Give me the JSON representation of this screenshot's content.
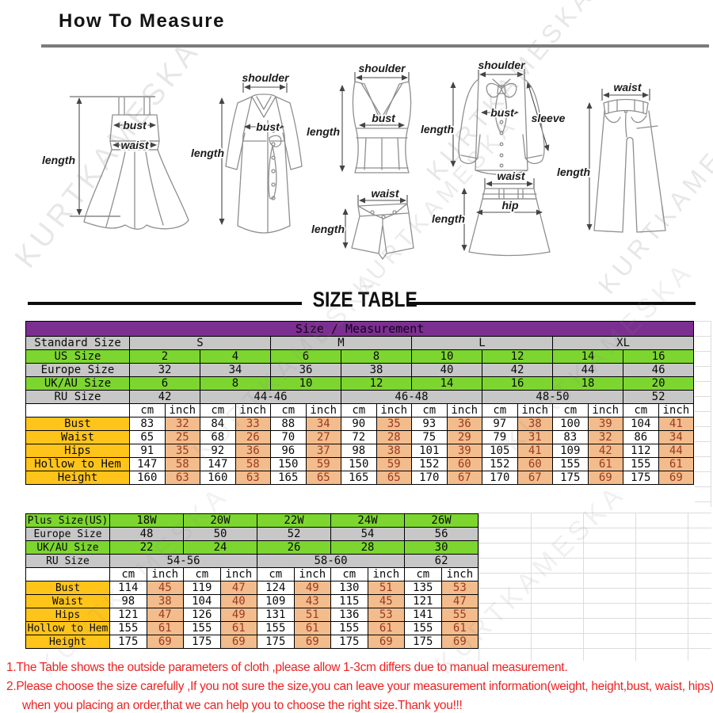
{
  "page": {
    "title": "How To Measure",
    "size_table_heading": "SIZE TABLE",
    "watermark": "KURTKAMESKA"
  },
  "diagrams": {
    "labels": {
      "bust": "bust",
      "waist": "waist",
      "length": "length",
      "shoulder": "shoulder",
      "sleeve": "sleeve",
      "hip": "hip"
    }
  },
  "standard_table": {
    "title": "Size / Measurement",
    "label_col_width": 131,
    "sub_cols": 16,
    "sub_col_width": 44.5,
    "rows": [
      {
        "name": "size-measurement-header",
        "cells": [
          [
            "Size / Measurement",
            17,
            "purple"
          ]
        ]
      },
      {
        "name": "standard-size",
        "label": "Standard Size",
        "lc": "gray",
        "cells": [
          [
            "S",
            4,
            "gray"
          ],
          [
            "M",
            4,
            "gray"
          ],
          [
            "L",
            4,
            "gray"
          ],
          [
            "XL",
            4,
            "gray"
          ]
        ]
      },
      {
        "name": "us-size",
        "label": "US Size",
        "lc": "green",
        "cells": [
          [
            "2",
            2,
            "green"
          ],
          [
            "4",
            2,
            "green"
          ],
          [
            "6",
            2,
            "green"
          ],
          [
            "8",
            2,
            "green"
          ],
          [
            "10",
            2,
            "green"
          ],
          [
            "12",
            2,
            "green"
          ],
          [
            "14",
            2,
            "green"
          ],
          [
            "16",
            2,
            "green"
          ]
        ]
      },
      {
        "name": "europe-size",
        "label": "Europe Size",
        "lc": "gray",
        "cells": [
          [
            "32",
            2,
            "gray"
          ],
          [
            "34",
            2,
            "gray"
          ],
          [
            "36",
            2,
            "gray"
          ],
          [
            "38",
            2,
            "gray"
          ],
          [
            "40",
            2,
            "gray"
          ],
          [
            "42",
            2,
            "gray"
          ],
          [
            "44",
            2,
            "gray"
          ],
          [
            "46",
            2,
            "gray"
          ]
        ]
      },
      {
        "name": "uk-au-size",
        "label": "UK/AU Size",
        "lc": "green",
        "cells": [
          [
            "6",
            2,
            "green"
          ],
          [
            "8",
            2,
            "green"
          ],
          [
            "10",
            2,
            "green"
          ],
          [
            "12",
            2,
            "green"
          ],
          [
            "14",
            2,
            "green"
          ],
          [
            "16",
            2,
            "green"
          ],
          [
            "18",
            2,
            "green"
          ],
          [
            "20",
            2,
            "green"
          ]
        ]
      },
      {
        "name": "ru-size",
        "label": "RU Size",
        "lc": "gray",
        "cells": [
          [
            "42",
            2,
            "gray"
          ],
          [
            "44-46",
            4,
            "gray"
          ],
          [
            "46-48",
            4,
            "gray"
          ],
          [
            "48-50",
            4,
            "gray"
          ],
          [
            "52",
            2,
            "gray"
          ]
        ]
      },
      {
        "name": "units",
        "label": "",
        "lc": "unit",
        "type": "units",
        "unit_labels": [
          "cm",
          "inch"
        ],
        "pairs": 8
      },
      {
        "name": "bust",
        "label": "Bust",
        "lc": "gold",
        "type": "measure",
        "cm": [
          "83",
          "84",
          "88",
          "90",
          "93",
          "97",
          "100",
          "104"
        ],
        "inch": [
          "32",
          "33",
          "34",
          "35",
          "36",
          "38",
          "39",
          "41"
        ]
      },
      {
        "name": "waist",
        "label": "Waist",
        "lc": "gold",
        "type": "measure",
        "cm": [
          "65",
          "68",
          "70",
          "72",
          "75",
          "79",
          "83",
          "86"
        ],
        "inch": [
          "25",
          "26",
          "27",
          "28",
          "29",
          "31",
          "32",
          "34"
        ]
      },
      {
        "name": "hips",
        "label": "Hips",
        "lc": "gold",
        "type": "measure",
        "cm": [
          "91",
          "92",
          "96",
          "98",
          "101",
          "105",
          "109",
          "112"
        ],
        "inch": [
          "35",
          "36",
          "37",
          "38",
          "39",
          "41",
          "42",
          "44"
        ]
      },
      {
        "name": "hollow-to-hem",
        "label": "Hollow to Hem",
        "lc": "gold",
        "type": "measure",
        "cm": [
          "147",
          "147",
          "150",
          "150",
          "152",
          "152",
          "155",
          "155"
        ],
        "inch": [
          "58",
          "58",
          "59",
          "59",
          "60",
          "60",
          "61",
          "61"
        ]
      },
      {
        "name": "height",
        "label": "Height",
        "lc": "gold",
        "type": "measure",
        "cm": [
          "160",
          "160",
          "165",
          "165",
          "170",
          "170",
          "175",
          "175"
        ],
        "inch": [
          "63",
          "63",
          "65",
          "65",
          "67",
          "67",
          "69",
          "69"
        ]
      }
    ]
  },
  "plus_table": {
    "label_col_width": 106,
    "sub_cols": 10,
    "sub_col_width": 46.5,
    "rows": [
      {
        "name": "plus-size",
        "label": "Plus Size(US)",
        "lc": "green",
        "cells": [
          [
            "18W",
            2,
            "green"
          ],
          [
            "20W",
            2,
            "green"
          ],
          [
            "22W",
            2,
            "green"
          ],
          [
            "24W",
            2,
            "green"
          ],
          [
            "26W",
            2,
            "green"
          ]
        ]
      },
      {
        "name": "europe-size",
        "label": "Europe Size",
        "lc": "gray",
        "cells": [
          [
            "48",
            2,
            "gray"
          ],
          [
            "50",
            2,
            "gray"
          ],
          [
            "52",
            2,
            "gray"
          ],
          [
            "54",
            2,
            "gray"
          ],
          [
            "56",
            2,
            "gray"
          ]
        ]
      },
      {
        "name": "uk-au-size",
        "label": "UK/AU Size",
        "lc": "green",
        "cells": [
          [
            "22",
            2,
            "green"
          ],
          [
            "24",
            2,
            "green"
          ],
          [
            "26",
            2,
            "green"
          ],
          [
            "28",
            2,
            "green"
          ],
          [
            "30",
            2,
            "green"
          ]
        ]
      },
      {
        "name": "ru-size",
        "label": "RU Size",
        "lc": "gray",
        "cells": [
          [
            "54-56",
            4,
            "gray"
          ],
          [
            "58-60",
            4,
            "gray"
          ],
          [
            "62",
            2,
            "gray"
          ]
        ]
      },
      {
        "name": "units",
        "label": "",
        "lc": "unit",
        "type": "units",
        "unit_labels": [
          "cm",
          "inch"
        ],
        "pairs": 5
      },
      {
        "name": "bust",
        "label": "Bust",
        "lc": "gold",
        "type": "measure",
        "cm": [
          "114",
          "119",
          "124",
          "130",
          "135"
        ],
        "inch": [
          "45",
          "47",
          "49",
          "51",
          "53"
        ]
      },
      {
        "name": "waist",
        "label": "Waist",
        "lc": "gold",
        "type": "measure",
        "cm": [
          "98",
          "104",
          "109",
          "115",
          "121"
        ],
        "inch": [
          "38",
          "40",
          "43",
          "45",
          "47"
        ]
      },
      {
        "name": "hips",
        "label": "Hips",
        "lc": "gold",
        "type": "measure",
        "cm": [
          "121",
          "126",
          "131",
          "136",
          "141"
        ],
        "inch": [
          "47",
          "49",
          "51",
          "53",
          "55"
        ]
      },
      {
        "name": "hollow-to-hem",
        "label": "Hollow to Hem",
        "lc": "gold",
        "type": "measure",
        "cm": [
          "155",
          "155",
          "155",
          "155",
          "155"
        ],
        "inch": [
          "61",
          "61",
          "61",
          "61",
          "61"
        ]
      },
      {
        "name": "height",
        "label": "Height",
        "lc": "gold",
        "type": "measure",
        "cm": [
          "175",
          "175",
          "175",
          "175",
          "175"
        ],
        "inch": [
          "69",
          "69",
          "69",
          "69",
          "69"
        ]
      }
    ]
  },
  "notes": [
    "1.The Table shows the outside parameters of cloth ,please allow 1-3cm differs due to manual measurement.",
    "2.Please choose the size carefully ,If you not sure the size,you can leave your measurement information(weight, height,bust, waist, hips).",
    "when you placing an order,that we can help you to choose the right size.Thank you!!!"
  ],
  "colors": {
    "header_purple": "#7B2F90",
    "row_green": "#7CD62F",
    "row_gray": "#C7C7C7",
    "label_gold": "#FFC41A",
    "inch_salmon": "#F2BC8C",
    "inch_text": "#9C3A23",
    "note_red": "#EE2222",
    "divider_gray": "#7B7B7B"
  }
}
